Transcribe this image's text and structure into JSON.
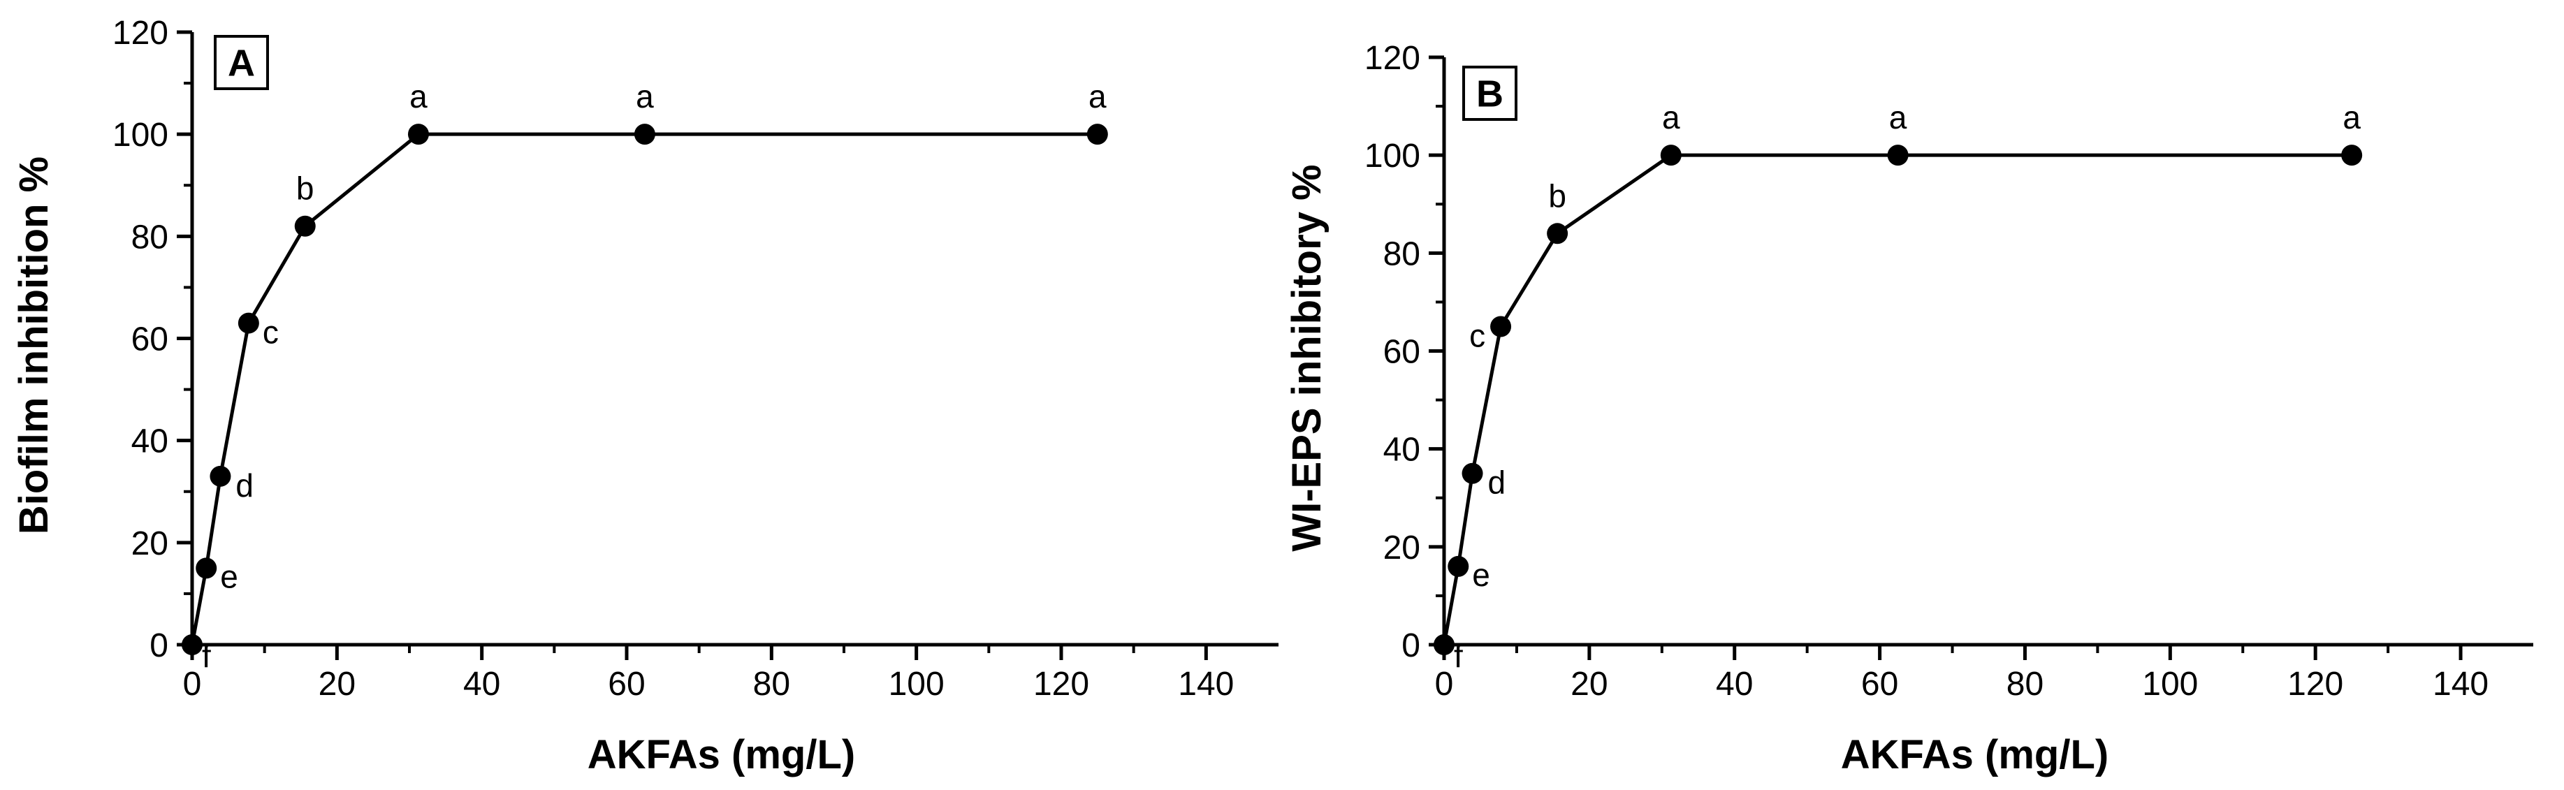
{
  "chart_data": [
    {
      "type": "line",
      "panel_label": "A",
      "xlabel": "AKFAs (mg/L)",
      "ylabel": "Biofilm inhibition %",
      "xlim": [
        0,
        150
      ],
      "ylim": [
        0,
        120
      ],
      "xticks": [
        0,
        20,
        40,
        60,
        80,
        100,
        120,
        140
      ],
      "yticks": [
        0,
        20,
        40,
        60,
        80,
        100,
        120
      ],
      "x": [
        0,
        1.95,
        3.9,
        7.8,
        15.6,
        31.25,
        62.5,
        125
      ],
      "y": [
        0,
        15,
        33,
        63,
        82,
        100,
        100,
        100
      ],
      "point_labels": [
        "f",
        "e",
        "d",
        "c",
        "b",
        "a",
        "a",
        "a"
      ],
      "colors": {
        "line": "#000000",
        "marker": "#000000"
      }
    },
    {
      "type": "line",
      "panel_label": "B",
      "xlabel": "AKFAs (mg/L)",
      "ylabel": "WI-EPS inhibitory %",
      "xlim": [
        0,
        150
      ],
      "ylim": [
        0,
        120
      ],
      "xticks": [
        0,
        20,
        40,
        60,
        80,
        100,
        120,
        140
      ],
      "yticks": [
        0,
        20,
        40,
        60,
        80,
        100,
        120
      ],
      "x": [
        0,
        1.95,
        3.9,
        7.8,
        15.6,
        31.25,
        62.5,
        125
      ],
      "y": [
        0,
        16,
        35,
        65,
        84,
        100,
        100,
        100
      ],
      "point_labels": [
        "f",
        "e",
        "d",
        "c",
        "b",
        "a",
        "a",
        "a"
      ],
      "colors": {
        "line": "#000000",
        "marker": "#000000"
      }
    }
  ]
}
